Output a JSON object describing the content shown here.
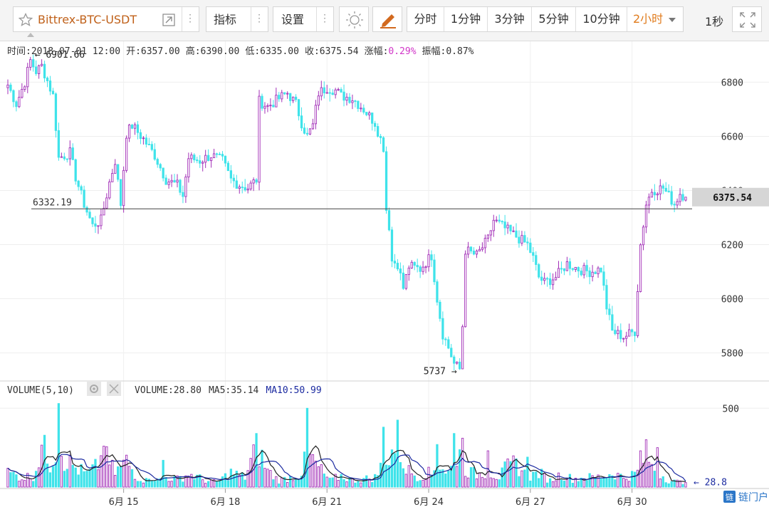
{
  "toolbar": {
    "symbol": "Bittrex-BTC-USDT",
    "indicators_label": "指标",
    "settings_label": "设置",
    "periods": [
      "分时",
      "1分钟",
      "3分钟",
      "5分钟",
      "10分钟"
    ],
    "active_period": "2小时",
    "refresh_label": "1秒",
    "colors": {
      "active": "#e07b1c",
      "symbol": "#c0611a"
    }
  },
  "info_bar": {
    "time_label": "时间:",
    "time": "2018-07-01 12:00",
    "open_label": "开:",
    "open": "6357.00",
    "high_label": "高:",
    "high": "6390.00",
    "low_label": "低:",
    "low": "6335.00",
    "close_label": "收:",
    "close": "6375.54",
    "change_label": "涨幅:",
    "change": "0.29%",
    "amplitude_label": "振幅:",
    "amplitude": "0.87%"
  },
  "volume_bar": {
    "title": "VOLUME(5,10)",
    "volume_label": "VOLUME:",
    "volume": "28.80",
    "ma5_label": "MA5:",
    "ma5": "35.14",
    "ma10_label": "MA10:",
    "ma10": "50.99"
  },
  "watermark": "链门户",
  "chart_data": {
    "type": "candlestick",
    "interval": "2h",
    "colors": {
      "up": "#a331b8",
      "down": "#3fe3ea",
      "ma5": "#222222",
      "ma10": "#1b2aa0",
      "ref_line": "#444444",
      "price_tag": "#d6d6d6"
    },
    "price_axis": {
      "ticks": [
        5800,
        6000,
        6200,
        6400,
        6600,
        6800
      ],
      "range": [
        5720,
        6930
      ]
    },
    "volume_axis": {
      "ticks": [
        500
      ],
      "range": [
        0,
        560
      ]
    },
    "x_ticks": [
      "6月 15",
      "6月 18",
      "6月 21",
      "6月 24",
      "6月 27",
      "6月 30"
    ],
    "x_tick_indices": [
      41,
      77,
      113,
      149,
      185,
      221
    ],
    "max_label": "6901.66",
    "min_label": "5737",
    "ref_label": "6332.19",
    "ref_value": 6332.19,
    "last_price": "6375.54",
    "last_volume_label": "28.8",
    "price_path": [
      [
        0,
        6790
      ],
      [
        3,
        6720
      ],
      [
        6,
        6800
      ],
      [
        8,
        6880
      ],
      [
        10,
        6840
      ],
      [
        12,
        6860
      ],
      [
        16,
        6750
      ],
      [
        18,
        6520
      ],
      [
        22,
        6540
      ],
      [
        24,
        6450
      ],
      [
        27,
        6350
      ],
      [
        30,
        6270
      ],
      [
        33,
        6290
      ],
      [
        36,
        6430
      ],
      [
        38,
        6510
      ],
      [
        40,
        6350
      ],
      [
        42,
        6610
      ],
      [
        44,
        6640
      ],
      [
        48,
        6590
      ],
      [
        52,
        6530
      ],
      [
        56,
        6440
      ],
      [
        60,
        6420
      ],
      [
        62,
        6380
      ],
      [
        64,
        6520
      ],
      [
        68,
        6510
      ],
      [
        72,
        6530
      ],
      [
        76,
        6510
      ],
      [
        79,
        6440
      ],
      [
        82,
        6420
      ],
      [
        85,
        6410
      ],
      [
        88,
        6440
      ],
      [
        89,
        6730
      ],
      [
        92,
        6710
      ],
      [
        96,
        6740
      ],
      [
        99,
        6760
      ],
      [
        102,
        6720
      ],
      [
        104,
        6650
      ],
      [
        106,
        6600
      ],
      [
        108,
        6640
      ],
      [
        110,
        6760
      ],
      [
        113,
        6780
      ],
      [
        116,
        6770
      ],
      [
        118,
        6750
      ],
      [
        122,
        6740
      ],
      [
        126,
        6700
      ],
      [
        130,
        6650
      ],
      [
        133,
        6560
      ],
      [
        134,
        6330
      ],
      [
        135,
        6270
      ],
      [
        136,
        6140
      ],
      [
        138,
        6130
      ],
      [
        140,
        6040
      ],
      [
        142,
        6120
      ],
      [
        146,
        6110
      ],
      [
        150,
        6160
      ],
      [
        152,
        6000
      ],
      [
        154,
        5870
      ],
      [
        156,
        5820
      ],
      [
        158,
        5760
      ],
      [
        160,
        5740
      ],
      [
        161,
        5900
      ],
      [
        162,
        6180
      ],
      [
        166,
        6160
      ],
      [
        170,
        6220
      ],
      [
        172,
        6290
      ],
      [
        176,
        6260
      ],
      [
        180,
        6230
      ],
      [
        184,
        6200
      ],
      [
        186,
        6150
      ],
      [
        188,
        6080
      ],
      [
        190,
        6060
      ],
      [
        194,
        6080
      ],
      [
        198,
        6130
      ],
      [
        202,
        6110
      ],
      [
        206,
        6100
      ],
      [
        210,
        6110
      ],
      [
        212,
        5970
      ],
      [
        214,
        5880
      ],
      [
        218,
        5860
      ],
      [
        222,
        5880
      ],
      [
        224,
        6200
      ],
      [
        226,
        6350
      ],
      [
        228,
        6400
      ],
      [
        232,
        6410
      ],
      [
        234,
        6380
      ],
      [
        236,
        6350
      ],
      [
        238,
        6390
      ],
      [
        240,
        6376
      ]
    ],
    "volume_path": [
      [
        0,
        90
      ],
      [
        5,
        60
      ],
      [
        9,
        70
      ],
      [
        10,
        120
      ],
      [
        12,
        260
      ],
      [
        15,
        150
      ],
      [
        18,
        300
      ],
      [
        20,
        180
      ],
      [
        24,
        120
      ],
      [
        28,
        80
      ],
      [
        31,
        120
      ],
      [
        34,
        200
      ],
      [
        38,
        90
      ],
      [
        42,
        160
      ],
      [
        46,
        60
      ],
      [
        49,
        40
      ],
      [
        50,
        80
      ],
      [
        53,
        40
      ],
      [
        56,
        60
      ],
      [
        60,
        50
      ],
      [
        64,
        80
      ],
      [
        66,
        70
      ],
      [
        70,
        40
      ],
      [
        74,
        30
      ],
      [
        79,
        90
      ],
      [
        84,
        60
      ],
      [
        88,
        260
      ],
      [
        92,
        100
      ],
      [
        96,
        40
      ],
      [
        100,
        60
      ],
      [
        104,
        90
      ],
      [
        106,
        210
      ],
      [
        110,
        120
      ],
      [
        114,
        40
      ],
      [
        118,
        70
      ],
      [
        122,
        40
      ],
      [
        126,
        50
      ],
      [
        130,
        60
      ],
      [
        133,
        150
      ],
      [
        134,
        220
      ],
      [
        135,
        180
      ],
      [
        138,
        300
      ],
      [
        140,
        150
      ],
      [
        142,
        100
      ],
      [
        146,
        60
      ],
      [
        148,
        100
      ],
      [
        150,
        70
      ],
      [
        152,
        170
      ],
      [
        154,
        120
      ],
      [
        156,
        90
      ],
      [
        158,
        150
      ],
      [
        160,
        280
      ],
      [
        161,
        130
      ],
      [
        164,
        90
      ],
      [
        166,
        80
      ],
      [
        170,
        100
      ],
      [
        174,
        60
      ],
      [
        176,
        110
      ],
      [
        180,
        150
      ],
      [
        184,
        60
      ],
      [
        188,
        90
      ],
      [
        192,
        40
      ],
      [
        196,
        80
      ],
      [
        200,
        50
      ],
      [
        204,
        60
      ],
      [
        208,
        60
      ],
      [
        212,
        70
      ],
      [
        214,
        90
      ],
      [
        218,
        60
      ],
      [
        222,
        80
      ],
      [
        224,
        110
      ],
      [
        226,
        240
      ],
      [
        228,
        120
      ],
      [
        230,
        100
      ],
      [
        234,
        40
      ],
      [
        238,
        30
      ],
      [
        240,
        29
      ]
    ],
    "volume_spikes": [
      [
        18,
        530
      ],
      [
        34,
        260
      ],
      [
        88,
        340
      ],
      [
        106,
        500
      ],
      [
        133,
        380
      ],
      [
        152,
        270
      ],
      [
        158,
        340
      ],
      [
        161,
        310
      ],
      [
        170,
        230
      ],
      [
        184,
        190
      ],
      [
        226,
        300
      ],
      [
        230,
        250
      ],
      [
        224,
        230
      ],
      [
        55,
        170
      ]
    ]
  }
}
